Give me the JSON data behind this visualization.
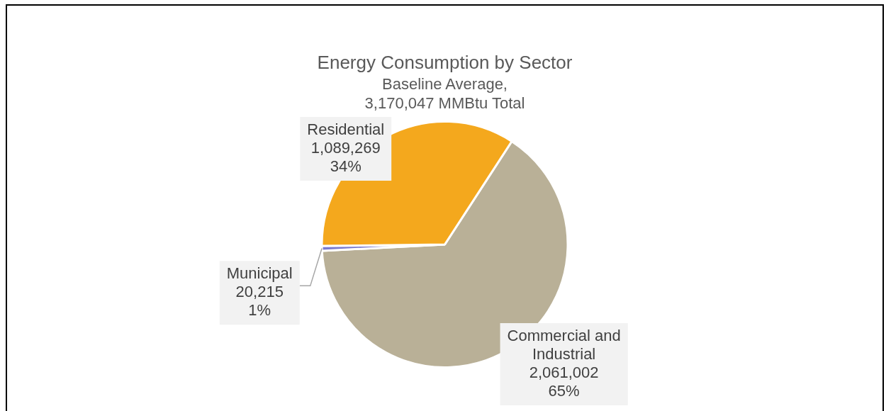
{
  "chart_data": {
    "type": "pie",
    "title": "Energy Consumption by Sector",
    "subtitle": "Baseline Average,\n3,170,047 MMBtu Total",
    "categories": [
      "Commercial and\nIndustrial",
      "Municipal",
      "Residential"
    ],
    "values": [
      2061002,
      20215,
      1089269
    ],
    "colors": [
      "#b9b097",
      "#7b7bd0",
      "#f4a81d"
    ],
    "value_labels": [
      "2,061,002\n65%",
      "20,215\n1%",
      "1,089,269\n34%"
    ],
    "legend": false
  }
}
